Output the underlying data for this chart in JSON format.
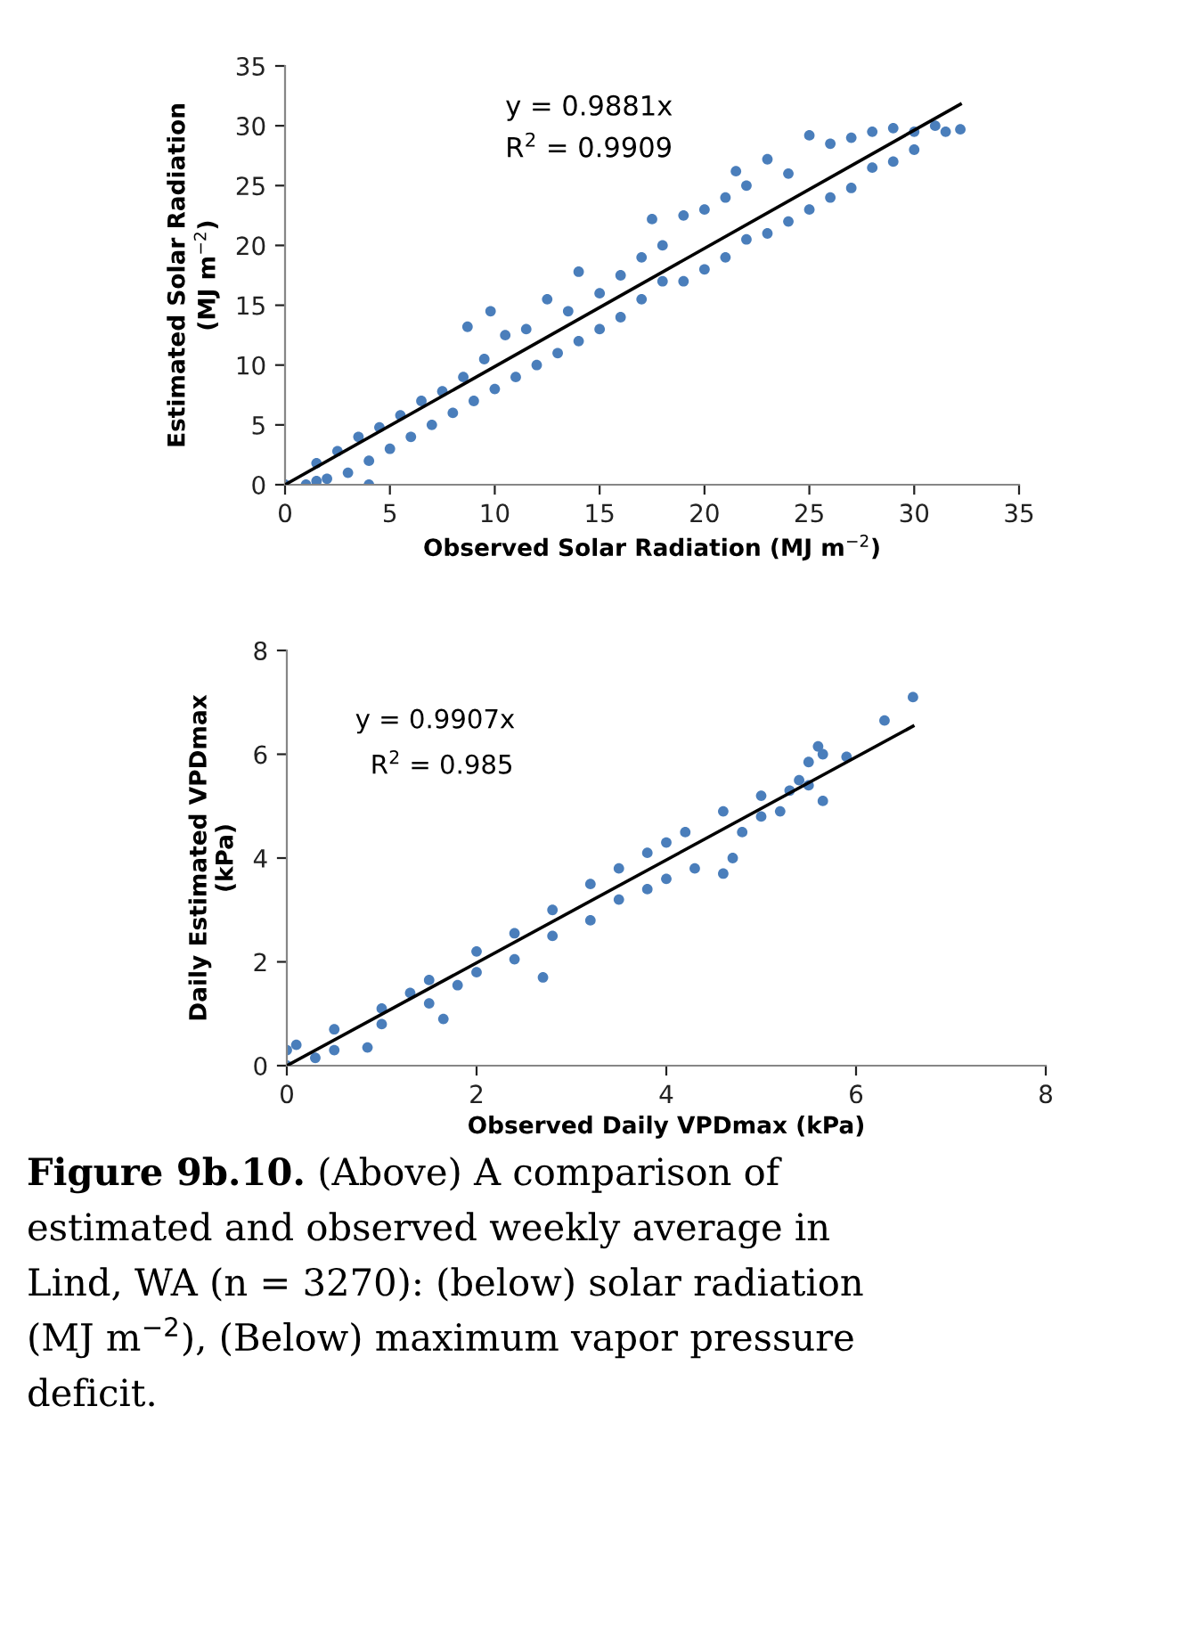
{
  "chart_data": [
    {
      "type": "scatter",
      "xlabel": "Observed Solar Radiation (MJ m$^{−2}$)",
      "ylabel": "Estimated Solar Radiation\n(MJ m$^{−2}$)",
      "xlim": [
        0,
        35
      ],
      "ylim": [
        0,
        35
      ],
      "xticks": [
        0,
        5,
        10,
        15,
        20,
        25,
        30,
        35
      ],
      "yticks": [
        0,
        5,
        10,
        15,
        20,
        25,
        30,
        35
      ],
      "grid": false,
      "annotations": [
        "y = 0.9881x",
        "R$^{2}$ = 0.9909"
      ],
      "series": [
        {
          "marker": "circle",
          "color": "#4a7ebb",
          "x": [
            0,
            1,
            1.5,
            1.5,
            2,
            2.5,
            3,
            3.5,
            4,
            4,
            4.5,
            5,
            5.5,
            6,
            6.5,
            7,
            7.5,
            8,
            8.5,
            8.7,
            9,
            9.5,
            9.8,
            10,
            10.5,
            11,
            11.5,
            12,
            12.5,
            13,
            13.5,
            14,
            14,
            15,
            15,
            16,
            16,
            17,
            17.5,
            17,
            18,
            18,
            19,
            19,
            20,
            20,
            21,
            21,
            21.5,
            22,
            22,
            23,
            23,
            24,
            24,
            25,
            25,
            26,
            26,
            27,
            27,
            28,
            28,
            29,
            29,
            30,
            30,
            31,
            31.5,
            32.2
          ],
          "values": [
            0,
            0,
            0.3,
            1.8,
            0.5,
            2.8,
            1,
            4,
            0,
            2,
            4.8,
            3,
            5.8,
            4,
            7,
            5,
            7.8,
            6,
            9,
            13.2,
            7,
            10.5,
            14.5,
            8,
            12.5,
            9,
            13,
            10,
            15.5,
            11,
            14.5,
            17.8,
            12,
            16,
            13,
            17.5,
            14,
            19,
            22.2,
            15.5,
            20,
            17,
            22.5,
            17,
            23,
            18,
            24,
            19,
            26.2,
            25,
            20.5,
            27.2,
            21,
            26,
            22,
            29.2,
            23,
            28.5,
            24,
            29,
            24.8,
            29.5,
            26.5,
            29.8,
            27,
            29.5,
            28,
            30,
            29.5,
            29.7
          ]
        },
        {
          "type": "line",
          "marker": "none",
          "color": "#000000",
          "x": [
            0,
            32.2
          ],
          "values": [
            0,
            31.8
          ]
        }
      ]
    },
    {
      "type": "scatter",
      "xlabel": "Observed Daily VPDmax (kPa)",
      "ylabel": "Daily Estimated VPDmax\n(kPa)",
      "xlim": [
        0,
        8
      ],
      "ylim": [
        0,
        8
      ],
      "xticks": [
        0,
        2,
        4,
        6,
        8
      ],
      "yticks": [
        0,
        2,
        4,
        6,
        8
      ],
      "grid": false,
      "annotations": [
        "y = 0.9907x",
        "R$^{2}$ = 0.985",
        "Figure 9b.10.",
        "(Above) A comparison of",
        "estimated and observed weekly average in",
        "Lind, WA (n = 3270): (below) solar radiation",
        "(MJ m$^{−2}$), (Below) maximum vapor pressure",
        "deficit."
      ],
      "series": [
        {
          "marker": "circle",
          "color": "#4a7ebb",
          "x": [
            0,
            0,
            0.1,
            0.3,
            0.5,
            0.5,
            0.85,
            1,
            1,
            1.3,
            1.5,
            1.5,
            1.65,
            1.8,
            2,
            2,
            2.4,
            2.4,
            2.7,
            2.8,
            2.8,
            3.2,
            3.2,
            3.5,
            3.5,
            3.8,
            3.8,
            4,
            4,
            4.2,
            4.3,
            4.6,
            4.6,
            4.7,
            4.8,
            5,
            5,
            5.2,
            5.3,
            5.4,
            5.5,
            5.5,
            5.6,
            5.65,
            5.65,
            5.9,
            6.3,
            6.6
          ],
          "values": [
            0,
            0.3,
            0.4,
            0.15,
            0.7,
            0.3,
            0.35,
            1.1,
            0.8,
            1.4,
            1.65,
            1.2,
            0.9,
            1.55,
            2.2,
            1.8,
            2.55,
            2.05,
            1.7,
            3,
            2.5,
            3.5,
            2.8,
            3.8,
            3.2,
            4.1,
            3.4,
            4.3,
            3.6,
            4.5,
            3.8,
            4.9,
            3.7,
            4,
            4.5,
            5.2,
            4.8,
            4.9,
            5.3,
            5.5,
            5.85,
            5.4,
            6.15,
            6,
            5.1,
            5.95,
            6.65,
            7.1
          ]
        },
        {
          "type": "line",
          "marker": "none",
          "color": "#000000",
          "x": [
            0,
            6.6
          ],
          "values": [
            0,
            6.54
          ]
        }
      ]
    }
  ]
}
